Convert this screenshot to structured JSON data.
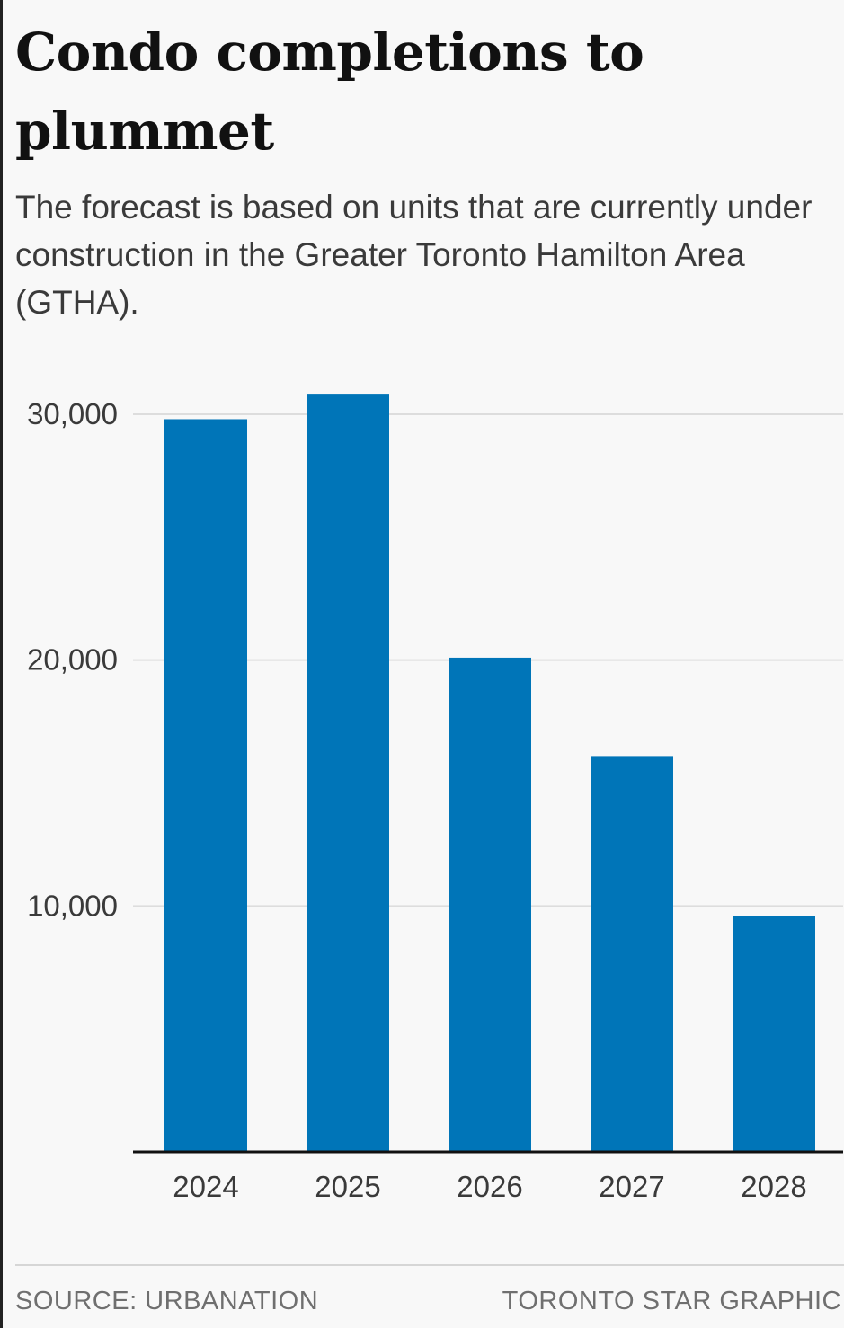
{
  "chart_data": {
    "type": "bar",
    "title": "Condo completions to plummet",
    "subtitle": "The forecast is based on units that are currently under construction in the Greater Toronto Hamilton Area (GTHA).",
    "categories": [
      "2024",
      "2025",
      "2026",
      "2027",
      "2028"
    ],
    "values": [
      29800,
      30800,
      20100,
      16100,
      9600
    ],
    "ylim": [
      0,
      30000
    ],
    "yticks": [
      10000,
      20000,
      30000
    ],
    "ytick_labels": [
      "10,000",
      "20,000",
      "30,000"
    ],
    "xlabel": "",
    "ylabel": "",
    "grid": true,
    "bar_color": "#0075b8",
    "grid_color": "#dddddd",
    "axis_color": "#111111"
  },
  "footer": {
    "source": "SOURCE: URBANATION",
    "credit": "TORONTO STAR GRAPHIC"
  }
}
